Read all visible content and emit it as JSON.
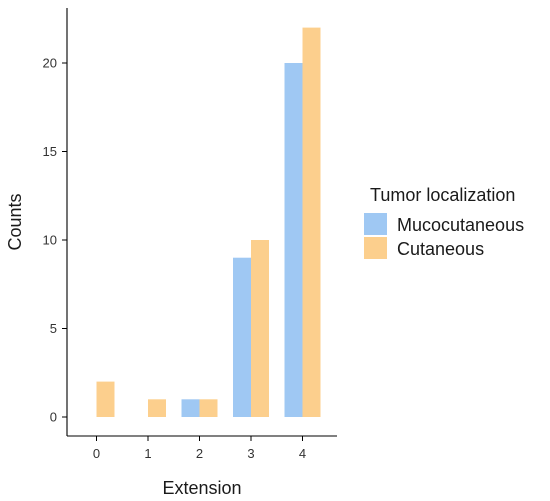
{
  "chart_data": {
    "type": "bar",
    "categories": [
      "0",
      "1",
      "2",
      "3",
      "4"
    ],
    "series": [
      {
        "name": "Mucocutaneous",
        "values": [
          0,
          0,
          1,
          9,
          20
        ],
        "color": "#9fc8f3"
      },
      {
        "name": "Cutaneous",
        "values": [
          2,
          1,
          1,
          10,
          22
        ],
        "color": "#fccf8d"
      }
    ],
    "xlabel": "Extension",
    "ylabel": "Counts",
    "yticks": [
      0,
      5,
      10,
      15,
      20
    ],
    "ylim": [
      0,
      22
    ],
    "grid": false,
    "legend": {
      "title": "Tumor localization",
      "placement": "right"
    }
  }
}
